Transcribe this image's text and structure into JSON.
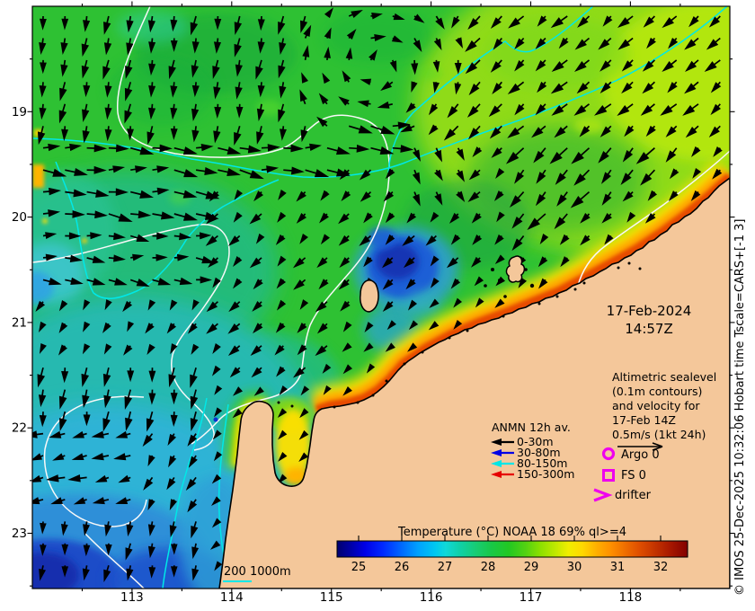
{
  "figure": {
    "background": "#ffffff"
  },
  "map": {
    "timestamp": {
      "date": "17-Feb-2024",
      "time": "14:57Z"
    },
    "annotation": {
      "lines": [
        "Altimetric sealevel",
        "(0.1m contours)",
        "and velocity for",
        "17-Feb 14Z",
        "0.5m/s (1kt 24h)"
      ]
    },
    "anmn": {
      "title": "ANMN 12h av.",
      "items": [
        {
          "label": "0-30m",
          "color": "#000000"
        },
        {
          "label": "30-80m",
          "color": "#0000e6"
        },
        {
          "label": "80-150m",
          "color": "#00e6e6"
        },
        {
          "label": "150-300m",
          "color": "#e60000"
        }
      ]
    },
    "markers": {
      "argo_label": "Argo 0",
      "fs_label": "FS 0",
      "drifter_label": "drifter",
      "color": "#ee00ee"
    },
    "scalebar": {
      "label": "200 1000m",
      "line_color": "#00e8e8"
    },
    "colorbar": {
      "title": "Temperature (°C) NOAA 18 69% ql>=4",
      "tick_labels": [
        "25",
        "26",
        "27",
        "28",
        "29",
        "30",
        "31",
        "32"
      ]
    },
    "contours": {
      "sealevel_color": "#f8f8f8",
      "isobath_color": "#00e8e8"
    },
    "land_color": "#f4c79a",
    "vector_color": "#000000"
  },
  "axes": {
    "x_tick_labels": [
      "113",
      "114",
      "115",
      "116",
      "117",
      "118"
    ],
    "y_tick_labels": [
      "19",
      "20",
      "21",
      "22",
      "23"
    ]
  },
  "credit": "© IMOS 25-Dec-2025 10:32:06 Hobart time Tscale=CARS+[-1 3]"
}
